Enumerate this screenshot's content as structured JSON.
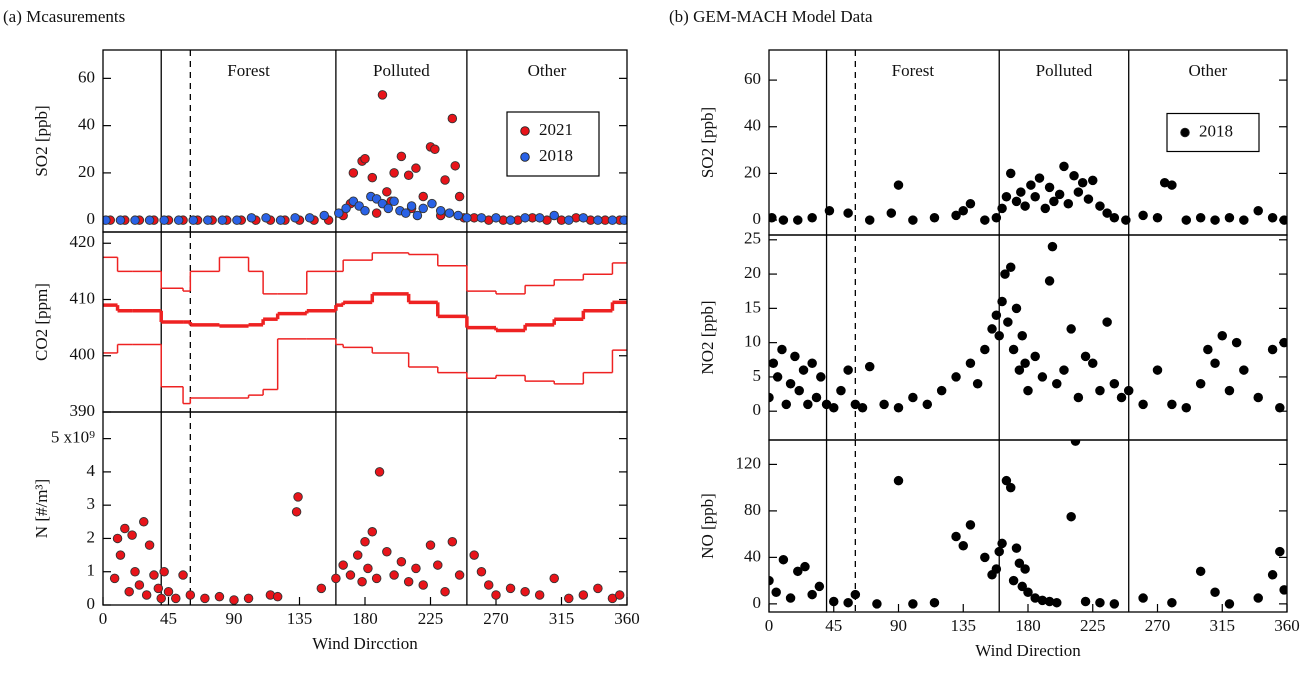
{
  "chart_data": [
    {
      "type": "scatter",
      "title": "(a) Mcasurements",
      "ylabel": "SO2 [ppb]",
      "xlim": [
        0,
        360
      ],
      "ylim": [
        -5,
        72
      ],
      "yticks": [
        0,
        20,
        40,
        60
      ],
      "legend": "upper right",
      "vlines": [
        {
          "x": 40
        },
        {
          "x": 60,
          "dash": true
        },
        {
          "x": 160
        },
        {
          "x": 250
        }
      ],
      "annotations": [
        {
          "text": "Forest",
          "x": 100
        },
        {
          "text": "Polluted",
          "x": 205
        },
        {
          "text": "Other",
          "x": 305
        }
      ],
      "series": [
        {
          "name": "2021",
          "color": "#e8141a",
          "x": [
            5,
            15,
            25,
            35,
            45,
            55,
            65,
            75,
            85,
            95,
            105,
            115,
            125,
            135,
            145,
            155,
            165,
            170,
            172,
            178,
            180,
            185,
            188,
            192,
            195,
            198,
            200,
            205,
            210,
            212,
            215,
            220,
            225,
            228,
            232,
            235,
            240,
            242,
            245,
            248,
            255,
            265,
            275,
            285,
            295,
            305,
            315,
            325,
            335,
            345,
            355
          ],
          "values": [
            0,
            0,
            0,
            0,
            0,
            0,
            0,
            0,
            0,
            0,
            0,
            0,
            0,
            0,
            0,
            0,
            2,
            7,
            20,
            25,
            26,
            18,
            3,
            53,
            12,
            8,
            20,
            27,
            19,
            5,
            22,
            10,
            31,
            30,
            2,
            17,
            43,
            23,
            10,
            1,
            1,
            0,
            0,
            0,
            1,
            0,
            0,
            1,
            0,
            0,
            0
          ]
        },
        {
          "name": "2018",
          "color": "#2a62e6",
          "x": [
            2,
            12,
            22,
            32,
            42,
            52,
            62,
            72,
            82,
            92,
            102,
            112,
            122,
            132,
            142,
            152,
            162,
            167,
            172,
            176,
            180,
            184,
            188,
            192,
            196,
            200,
            204,
            208,
            212,
            216,
            220,
            226,
            232,
            238,
            244,
            250,
            260,
            270,
            280,
            290,
            300,
            310,
            320,
            330,
            340,
            350,
            358
          ],
          "values": [
            0,
            0,
            0,
            0,
            0,
            0,
            0,
            0,
            0,
            0,
            1,
            1,
            0,
            1,
            1,
            2,
            3,
            5,
            8,
            6,
            4,
            10,
            9,
            7,
            5,
            8,
            4,
            3,
            6,
            2,
            5,
            7,
            4,
            3,
            2,
            1,
            1,
            1,
            0,
            1,
            1,
            2,
            0,
            1,
            0,
            0,
            0
          ]
        }
      ]
    },
    {
      "type": "line",
      "ylabel": "CO2 [ppm]",
      "xlim": [
        0,
        360
      ],
      "ylim": [
        390,
        422
      ],
      "yticks": [
        390,
        400,
        410,
        420
      ],
      "step": true,
      "vlines": [
        {
          "x": 40
        },
        {
          "x": 60,
          "dash": true
        },
        {
          "x": 160
        },
        {
          "x": 250
        }
      ],
      "series": [
        {
          "color": "#ee2222",
          "linewidth": 1.5,
          "x": [
            0,
            10,
            20,
            40,
            55,
            60,
            80,
            100,
            110,
            120,
            140,
            160,
            165,
            185,
            210,
            230,
            250,
            270,
            290,
            310,
            330,
            350
          ],
          "values": [
            417.5,
            415,
            415,
            412,
            411.5,
            415,
            417.5,
            415,
            411,
            411,
            415,
            415,
            417,
            418.3,
            418,
            416,
            411.5,
            411,
            412.5,
            413.5,
            414.5,
            416.5
          ]
        },
        {
          "color": "#ee2222",
          "linewidth": 3.5,
          "x": [
            0,
            10,
            20,
            40,
            55,
            60,
            80,
            100,
            110,
            120,
            140,
            160,
            165,
            185,
            210,
            230,
            250,
            270,
            290,
            310,
            330,
            350
          ],
          "values": [
            409,
            408,
            408,
            406,
            406,
            405.5,
            405.3,
            405.5,
            406.5,
            407.5,
            408,
            409,
            409.5,
            411,
            409.5,
            407,
            405,
            404.5,
            405.5,
            406.5,
            408,
            409.5
          ]
        },
        {
          "color": "#ee2222",
          "linewidth": 1.5,
          "x": [
            0,
            10,
            20,
            40,
            55,
            60,
            80,
            100,
            110,
            120,
            140,
            160,
            165,
            185,
            210,
            230,
            250,
            270,
            290,
            310,
            330,
            350
          ],
          "values": [
            400.5,
            402,
            402,
            394.5,
            391.5,
            392.5,
            392.5,
            393,
            394,
            403,
            403,
            402,
            401.5,
            400.5,
            398,
            397,
            396,
            396.5,
            395.5,
            395,
            397,
            401
          ]
        }
      ]
    },
    {
      "type": "scatter",
      "ylabel": "N [#/m³]",
      "xlabel": "Wind Dircction",
      "xlim": [
        0,
        360
      ],
      "xticks": [
        0,
        45,
        90,
        135,
        180,
        225,
        270,
        315,
        360
      ],
      "ylim": [
        0,
        5.8
      ],
      "yticks": [
        0,
        1,
        2,
        3,
        4,
        {
          "value": 5,
          "label": "5 x10⁹"
        }
      ],
      "vlines": [
        {
          "x": 40
        },
        {
          "x": 60,
          "dash": true
        },
        {
          "x": 160
        },
        {
          "x": 250
        }
      ],
      "series": [
        {
          "color": "#e8141a",
          "x": [
            8,
            10,
            12,
            15,
            18,
            20,
            22,
            25,
            28,
            30,
            32,
            35,
            38,
            40,
            42,
            45,
            50,
            55,
            60,
            70,
            80,
            90,
            100,
            115,
            120,
            133,
            134,
            150,
            160,
            165,
            170,
            175,
            178,
            180,
            182,
            185,
            188,
            190,
            195,
            200,
            205,
            210,
            215,
            220,
            225,
            230,
            235,
            240,
            245,
            255,
            260,
            265,
            270,
            280,
            290,
            300,
            310,
            320,
            330,
            340,
            350,
            355
          ],
          "values": [
            0.8,
            2.0,
            1.5,
            2.3,
            0.4,
            2.1,
            1.0,
            0.6,
            2.5,
            0.3,
            1.8,
            0.9,
            0.5,
            0.2,
            1.0,
            0.4,
            0.2,
            0.9,
            0.3,
            0.2,
            0.25,
            0.15,
            0.2,
            0.3,
            0.25,
            2.8,
            3.25,
            0.5,
            0.8,
            1.2,
            0.9,
            1.5,
            0.7,
            1.9,
            1.1,
            2.2,
            0.8,
            4.0,
            1.6,
            0.9,
            1.3,
            0.7,
            1.1,
            0.6,
            1.8,
            1.2,
            0.4,
            1.9,
            0.9,
            1.5,
            1.0,
            0.6,
            0.3,
            0.5,
            0.4,
            0.3,
            0.8,
            0.2,
            0.3,
            0.5,
            0.2,
            0.3
          ]
        }
      ]
    },
    {
      "type": "scatter",
      "title": "(b) GEM-MACH Model Data",
      "ylabel": "SO2 [ppb]",
      "xlim": [
        0,
        360
      ],
      "ylim": [
        -6.4,
        72.9
      ],
      "yticks": [
        0,
        20,
        40,
        60
      ],
      "legend": "center right",
      "vlines": [
        {
          "x": 40
        },
        {
          "x": 60,
          "dash": true
        },
        {
          "x": 160
        },
        {
          "x": 250
        }
      ],
      "annotations": [
        {
          "text": "Forest",
          "x": 100
        },
        {
          "text": "Polluted",
          "x": 205
        },
        {
          "text": "Other",
          "x": 305
        }
      ],
      "series": [
        {
          "name": "2018",
          "color": "#000000",
          "x": [
            2,
            10,
            20,
            30,
            42,
            55,
            70,
            85,
            90,
            100,
            115,
            130,
            135,
            140,
            150,
            158,
            162,
            165,
            168,
            172,
            175,
            178,
            182,
            185,
            188,
            192,
            195,
            198,
            202,
            205,
            208,
            212,
            215,
            218,
            222,
            225,
            230,
            235,
            240,
            248,
            260,
            270,
            275,
            280,
            290,
            300,
            310,
            320,
            330,
            340,
            350,
            358
          ],
          "values": [
            1,
            0,
            0,
            1,
            4,
            3,
            0,
            3,
            15,
            0,
            1,
            2,
            4,
            7,
            0,
            1,
            5,
            10,
            20,
            8,
            12,
            6,
            15,
            10,
            18,
            5,
            14,
            8,
            11,
            23,
            7,
            19,
            12,
            16,
            9,
            17,
            6,
            3,
            1,
            0,
            2,
            1,
            16,
            15,
            0,
            1,
            0,
            1,
            0,
            4,
            1,
            0
          ]
        }
      ]
    },
    {
      "type": "scatter",
      "ylabel": "NO2 [ppb]",
      "xlim": [
        0,
        360
      ],
      "ylim": [
        -4.2,
        25.7
      ],
      "yticks": [
        0,
        5,
        10,
        15,
        20,
        25
      ],
      "vlines": [
        {
          "x": 40
        },
        {
          "x": 60,
          "dash": true
        },
        {
          "x": 160
        },
        {
          "x": 250
        }
      ],
      "series": [
        {
          "color": "#000000",
          "x": [
            0,
            3,
            6,
            9,
            12,
            15,
            18,
            21,
            24,
            27,
            30,
            33,
            36,
            40,
            45,
            50,
            55,
            60,
            65,
            70,
            80,
            90,
            100,
            110,
            120,
            130,
            140,
            145,
            150,
            155,
            158,
            160,
            162,
            164,
            166,
            168,
            170,
            172,
            174,
            176,
            178,
            180,
            185,
            190,
            195,
            197,
            200,
            205,
            210,
            215,
            220,
            225,
            230,
            235,
            240,
            245,
            250,
            260,
            270,
            280,
            290,
            300,
            305,
            310,
            315,
            320,
            325,
            330,
            340,
            350,
            355,
            358
          ],
          "values": [
            2,
            7,
            5,
            9,
            1,
            4,
            8,
            3,
            6,
            1,
            7,
            2,
            5,
            1,
            0.5,
            3,
            6,
            1,
            0.5,
            6.5,
            1,
            0.5,
            2,
            1,
            3,
            5,
            7,
            4,
            9,
            12,
            14,
            11,
            16,
            20,
            13,
            21,
            9,
            15,
            6,
            11,
            7,
            3,
            8,
            5,
            19,
            24,
            4,
            6,
            12,
            2,
            8,
            7,
            3,
            13,
            4,
            2,
            3,
            1,
            6,
            1,
            0.5,
            4,
            9,
            7,
            11,
            3,
            10,
            6,
            2,
            9,
            0.5,
            10
          ]
        }
      ]
    },
    {
      "type": "scatter",
      "ylabel": "NO [ppb]",
      "xlabel": "Wind Direction",
      "xlim": [
        0,
        360
      ],
      "xticks": [
        0,
        45,
        90,
        135,
        180,
        225,
        270,
        315,
        360
      ],
      "ylim": [
        -7,
        141
      ],
      "yticks": [
        0,
        40,
        80,
        120
      ],
      "vlines": [
        {
          "x": 40
        },
        {
          "x": 60,
          "dash": true
        },
        {
          "x": 160
        },
        {
          "x": 250
        }
      ],
      "series": [
        {
          "color": "#000000",
          "x": [
            0,
            5,
            10,
            15,
            20,
            25,
            30,
            35,
            45,
            55,
            60,
            75,
            90,
            100,
            115,
            130,
            135,
            140,
            150,
            155,
            158,
            160,
            162,
            165,
            168,
            170,
            172,
            174,
            176,
            178,
            180,
            185,
            190,
            195,
            200,
            210,
            213,
            220,
            230,
            240,
            260,
            280,
            300,
            310,
            320,
            340,
            350,
            355,
            358
          ],
          "values": [
            20,
            10,
            38,
            5,
            28,
            32,
            8,
            15,
            2,
            1,
            8,
            0,
            106,
            0,
            1,
            58,
            50,
            68,
            40,
            25,
            30,
            45,
            52,
            106,
            100,
            20,
            48,
            35,
            15,
            30,
            10,
            5,
            3,
            2,
            1,
            75,
            140,
            2,
            1,
            0,
            5,
            1,
            28,
            10,
            0,
            5,
            25,
            45,
            12
          ]
        }
      ]
    }
  ]
}
